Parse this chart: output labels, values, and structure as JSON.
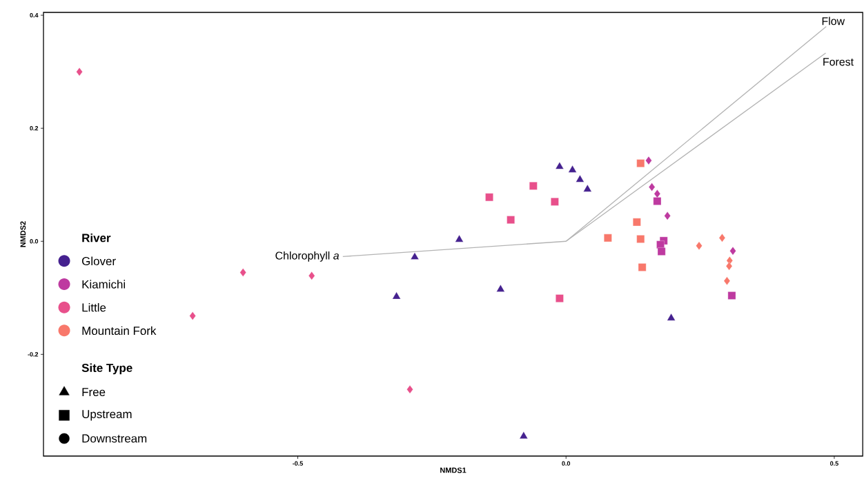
{
  "chart_data": {
    "type": "scatter",
    "xlabel": "NMDS1",
    "ylabel": "NMDS2",
    "legend": "left",
    "legend_title": "River",
    "annotations": [
      "Site Type"
    ],
    "xlim": [
      -0.974,
      0.553
    ],
    "ylim": [
      -0.38,
      0.405
    ],
    "xticks": [
      -0.5,
      {
        "value": 0,
        "label": "0.0"
      },
      0.5
    ],
    "yticks": [
      -0.2,
      {
        "value": 0,
        "label": "0.0"
      },
      0.2,
      0.4
    ],
    "series": [
      {
        "name": "Glover",
        "color": "#45218f",
        "marker": [
          "triangle",
          "triangle",
          "triangle",
          "triangle",
          "triangle",
          "triangle",
          "triangle",
          "triangle",
          "triangle",
          "triangle"
        ],
        "x": [
          -0.012,
          0.012,
          0.026,
          0.04,
          -0.199,
          -0.282,
          -0.316,
          -0.122,
          0.196,
          -0.079
        ],
        "values": [
          0.132,
          0.126,
          0.109,
          0.092,
          0.003,
          -0.028,
          -0.098,
          -0.085,
          -0.136,
          -0.345
        ]
      },
      {
        "name": "Kiamichi",
        "color": "#be3aa0",
        "marker": [
          "diamond",
          "diamond",
          "diamond",
          "diamond",
          "diamond",
          "square",
          "square",
          "square",
          "square",
          "square"
        ],
        "x": [
          0.154,
          0.16,
          0.17,
          0.189,
          0.311,
          0.17,
          0.182,
          0.176,
          0.178,
          0.309
        ],
        "values": [
          0.143,
          0.096,
          0.084,
          0.045,
          -0.017,
          0.071,
          0.001,
          -0.006,
          -0.018,
          -0.096
        ]
      },
      {
        "name": "Little",
        "color": "#e8508b",
        "marker": [
          "square",
          "square",
          "square",
          "square",
          "square",
          "diamond",
          "diamond",
          "diamond",
          "diamond",
          "diamond"
        ],
        "x": [
          -0.143,
          -0.061,
          -0.103,
          -0.021,
          -0.012,
          -0.907,
          -0.602,
          -0.474,
          -0.696,
          -0.291
        ],
        "values": [
          0.078,
          0.098,
          0.038,
          0.07,
          -0.101,
          0.3,
          -0.055,
          -0.061,
          -0.132,
          -0.262
        ]
      },
      {
        "name": "Mountain Fork",
        "color": "#f8786b",
        "marker": [
          "square",
          "square",
          "square",
          "square",
          "square",
          "diamond",
          "diamond",
          "diamond",
          "diamond",
          "diamond"
        ],
        "x": [
          0.139,
          0.132,
          0.078,
          0.139,
          0.142,
          0.248,
          0.291,
          0.305,
          0.304,
          0.3
        ],
        "values": [
          0.138,
          0.034,
          0.006,
          0.004,
          -0.046,
          -0.008,
          0.006,
          -0.034,
          -0.044,
          -0.07
        ]
      },
      {
        "name": "Free",
        "color": "#000000",
        "marker": "triangle"
      },
      {
        "name": "Upstream",
        "color": "#000000",
        "marker": "square"
      },
      {
        "name": "Downstream",
        "color": "#000000",
        "marker": "circle"
      },
      {
        "type": "line",
        "name": "Chlorophyll *a*",
        "color": "#b3b3b3",
        "x": [
          0,
          -0.416
        ],
        "values": [
          0,
          -0.027
        ]
      },
      {
        "type": "line",
        "name": "Flow",
        "color": "#b3b3b3",
        "x": [
          0,
          0.485
        ],
        "values": [
          0,
          0.38
        ]
      },
      {
        "type": "line",
        "name": "Forest",
        "color": "#b3b3b3",
        "x": [
          0,
          0.484
        ],
        "values": [
          0,
          0.333
        ]
      }
    ]
  }
}
